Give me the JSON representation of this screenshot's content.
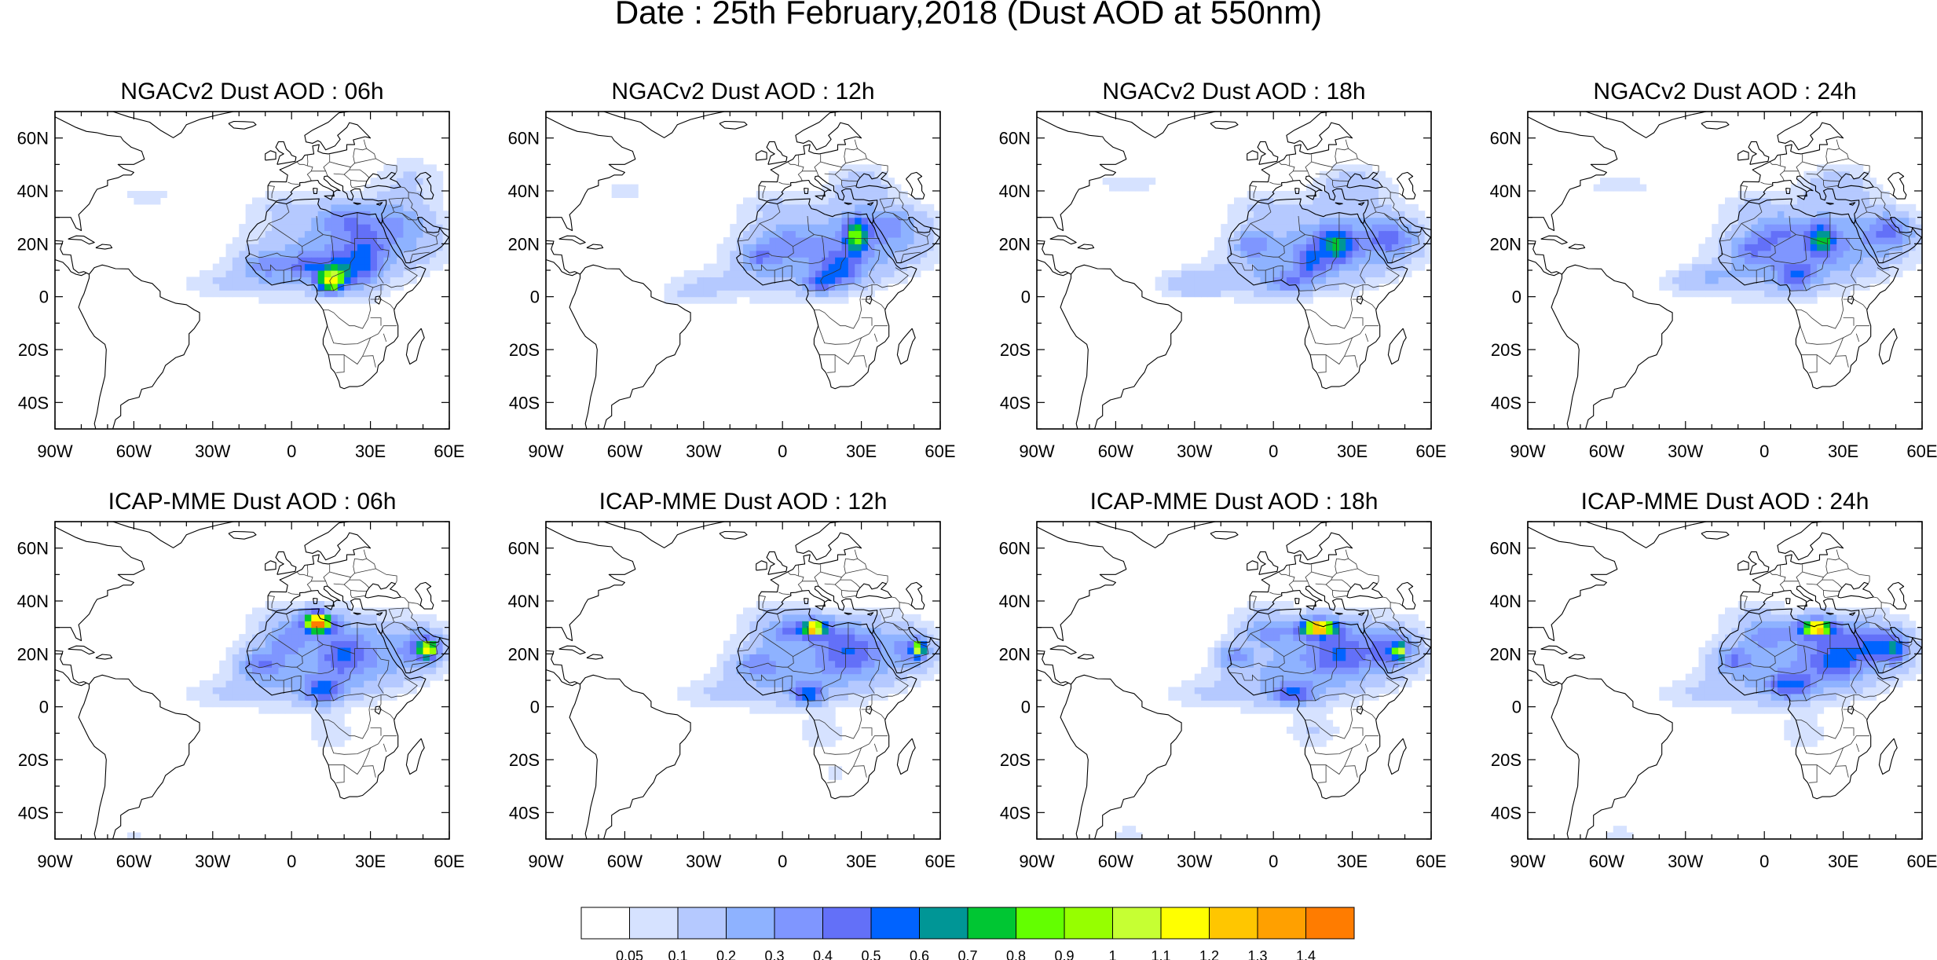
{
  "figure": {
    "title": "Date : 25th February,2018 (Dust AOD at 550nm)"
  },
  "axes": {
    "lon_ticks": [
      "90W",
      "60W",
      "30W",
      "0",
      "30E",
      "60E"
    ],
    "lat_ticks": [
      "60N",
      "40N",
      "20N",
      "0",
      "20S",
      "40S"
    ],
    "lon_range": [
      -90,
      60
    ],
    "lat_range": [
      -50,
      70
    ]
  },
  "colors": {
    "land_outline": "#000000",
    "ocean": "#ffffff"
  },
  "panels": [
    {
      "title": "NGACv2 Dust AOD : 06h",
      "model": "NGACv2",
      "hour": "06h"
    },
    {
      "title": "NGACv2 Dust AOD : 12h",
      "model": "NGACv2",
      "hour": "12h"
    },
    {
      "title": "NGACv2 Dust AOD : 18h",
      "model": "NGACv2",
      "hour": "18h"
    },
    {
      "title": "NGACv2 Dust AOD : 24h",
      "model": "NGACv2",
      "hour": "24h"
    },
    {
      "title": "ICAP-MME Dust AOD : 06h",
      "model": "ICAP-MME",
      "hour": "06h"
    },
    {
      "title": "ICAP-MME Dust AOD : 12h",
      "model": "ICAP-MME",
      "hour": "12h"
    },
    {
      "title": "ICAP-MME Dust AOD : 18h",
      "model": "ICAP-MME",
      "hour": "18h"
    },
    {
      "title": "ICAP-MME Dust AOD : 24h",
      "model": "ICAP-MME",
      "hour": "24h"
    }
  ],
  "colorbar": {
    "labels": [
      "0.05",
      "0.1",
      "0.2",
      "0.3",
      "0.4",
      "0.5",
      "0.6",
      "0.7",
      "0.8",
      "0.9",
      "1",
      "1.1",
      "1.2",
      "1.3",
      "1.4"
    ],
    "colors": [
      "#ffffff",
      "#d6e2ff",
      "#b5c9ff",
      "#8eb2ff",
      "#7f96ff",
      "#6370f8",
      "#0063ff",
      "#009696",
      "#00c633",
      "#63ff00",
      "#96ff00",
      "#c6ff33",
      "#ffff00",
      "#ffc600",
      "#ffa000",
      "#ff7c00",
      "#ff1900"
    ]
  }
}
